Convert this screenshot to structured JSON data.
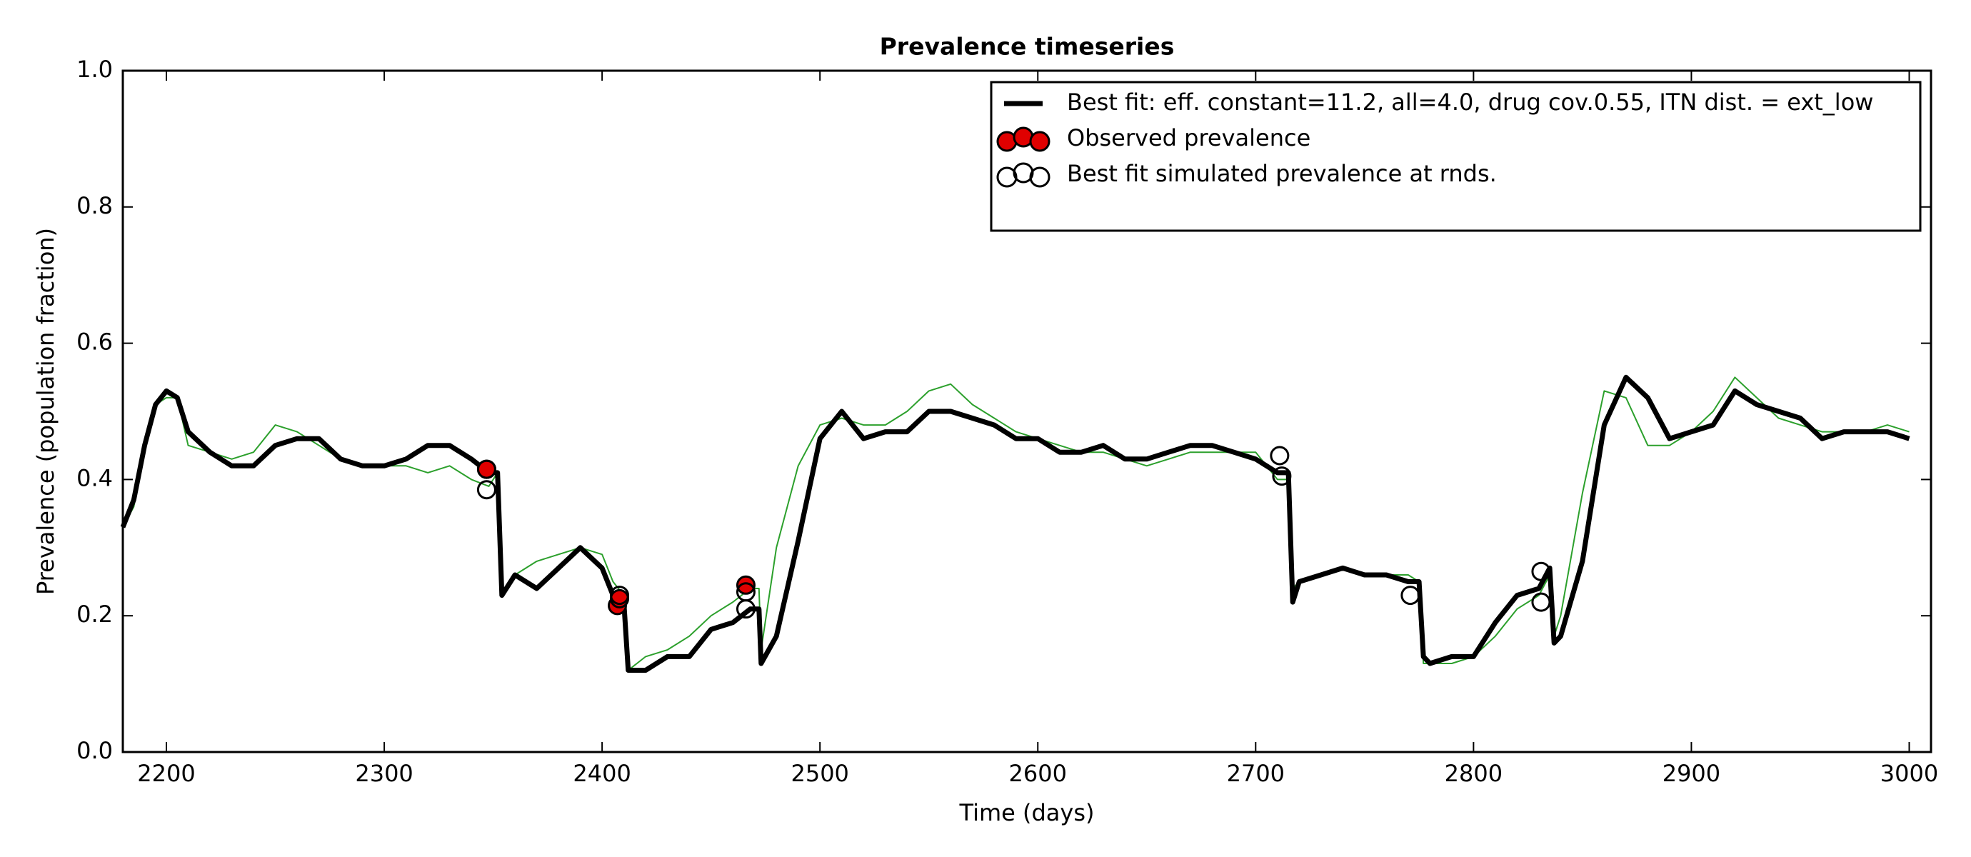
{
  "chart_data": {
    "type": "line",
    "title": "Prevalence timeseries",
    "xlabel": "Time (days)",
    "ylabel": "Prevalence (population fraction)",
    "xlim": [
      2180,
      3010
    ],
    "xticks": [
      2200,
      2300,
      2400,
      2500,
      2600,
      2700,
      2800,
      2900,
      3000
    ],
    "ylim": [
      0,
      1
    ],
    "yticks": [
      {
        "value": 0,
        "label": "0.0"
      },
      0.2,
      0.4,
      0.6,
      0.8,
      {
        "value": 1,
        "label": "1.0"
      }
    ],
    "legend": "upper right",
    "x": [
      2180,
      2185,
      2190,
      2195,
      2200,
      2205,
      2210,
      2220,
      2230,
      2240,
      2250,
      2260,
      2270,
      2280,
      2290,
      2300,
      2310,
      2320,
      2330,
      2340,
      2348,
      2352,
      2354,
      2360,
      2370,
      2380,
      2390,
      2400,
      2405,
      2410,
      2412,
      2420,
      2430,
      2440,
      2450,
      2460,
      2468,
      2472,
      2473,
      2480,
      2490,
      2500,
      2510,
      2520,
      2530,
      2540,
      2550,
      2560,
      2570,
      2580,
      2590,
      2600,
      2610,
      2620,
      2630,
      2640,
      2650,
      2660,
      2670,
      2680,
      2690,
      2700,
      2710,
      2715,
      2717,
      2720,
      2730,
      2740,
      2750,
      2760,
      2770,
      2775,
      2777,
      2780,
      2790,
      2800,
      2810,
      2820,
      2830,
      2835,
      2837,
      2840,
      2850,
      2860,
      2870,
      2880,
      2890,
      2900,
      2910,
      2920,
      2930,
      2940,
      2950,
      2960,
      2970,
      2980,
      2990,
      3000
    ],
    "series": [
      {
        "kind": "line",
        "color": "#2ca02c",
        "linewidth": 2,
        "values": [
          0.33,
          0.36,
          0.44,
          0.51,
          0.52,
          0.52,
          0.45,
          0.44,
          0.43,
          0.44,
          0.48,
          0.47,
          0.45,
          0.43,
          0.42,
          0.42,
          0.42,
          0.41,
          0.42,
          0.4,
          0.39,
          0.41,
          0.23,
          0.26,
          0.28,
          0.29,
          0.3,
          0.29,
          0.25,
          0.23,
          0.12,
          0.14,
          0.15,
          0.17,
          0.2,
          0.22,
          0.24,
          0.24,
          0.15,
          0.3,
          0.42,
          0.48,
          0.49,
          0.48,
          0.48,
          0.5,
          0.53,
          0.54,
          0.51,
          0.49,
          0.47,
          0.46,
          0.45,
          0.44,
          0.44,
          0.43,
          0.42,
          0.43,
          0.44,
          0.44,
          0.44,
          0.44,
          0.4,
          0.4,
          0.24,
          0.25,
          0.26,
          0.27,
          0.26,
          0.26,
          0.26,
          0.25,
          0.13,
          0.13,
          0.13,
          0.14,
          0.17,
          0.21,
          0.23,
          0.26,
          0.17,
          0.2,
          0.38,
          0.53,
          0.52,
          0.45,
          0.45,
          0.47,
          0.5,
          0.55,
          0.52,
          0.49,
          0.48,
          0.47,
          0.47,
          0.47,
          0.48,
          0.47
        ]
      },
      {
        "kind": "line",
        "name": "Best fit: eff. constant=11.2, all=4.0, drug cov.0.55, ITN dist. = ext_low",
        "color": "#000000",
        "linewidth": 7,
        "values": [
          0.33,
          0.37,
          0.45,
          0.51,
          0.53,
          0.52,
          0.47,
          0.44,
          0.42,
          0.42,
          0.45,
          0.46,
          0.46,
          0.43,
          0.42,
          0.42,
          0.43,
          0.45,
          0.45,
          0.43,
          0.41,
          0.41,
          0.23,
          0.26,
          0.24,
          0.27,
          0.3,
          0.27,
          0.23,
          0.22,
          0.12,
          0.12,
          0.14,
          0.14,
          0.18,
          0.19,
          0.21,
          0.21,
          0.13,
          0.17,
          0.31,
          0.46,
          0.5,
          0.46,
          0.47,
          0.47,
          0.5,
          0.5,
          0.49,
          0.48,
          0.46,
          0.46,
          0.44,
          0.44,
          0.45,
          0.43,
          0.43,
          0.44,
          0.45,
          0.45,
          0.44,
          0.43,
          0.41,
          0.41,
          0.22,
          0.25,
          0.26,
          0.27,
          0.26,
          0.26,
          0.25,
          0.25,
          0.14,
          0.13,
          0.14,
          0.14,
          0.19,
          0.23,
          0.24,
          0.27,
          0.16,
          0.17,
          0.28,
          0.48,
          0.55,
          0.52,
          0.46,
          0.47,
          0.48,
          0.53,
          0.51,
          0.5,
          0.49,
          0.46,
          0.47,
          0.47,
          0.47,
          0.46
        ]
      },
      {
        "kind": "scatter",
        "name": "Observed prevalence",
        "color": "#000000",
        "fill": "#e00000",
        "x": [
          2347,
          2407,
          2408,
          2466
        ],
        "values": [
          0.415,
          0.215,
          0.225,
          0.245
        ]
      },
      {
        "kind": "scatter",
        "name": "Best fit simulated prevalence at rnds.",
        "color": "#000000",
        "fill": "none",
        "x": [
          2347,
          2347,
          2408,
          2466,
          2466,
          2711,
          2712,
          2771,
          2831,
          2831
        ],
        "values": [
          0.415,
          0.385,
          0.23,
          0.21,
          0.235,
          0.435,
          0.405,
          0.23,
          0.265,
          0.22
        ]
      }
    ]
  }
}
